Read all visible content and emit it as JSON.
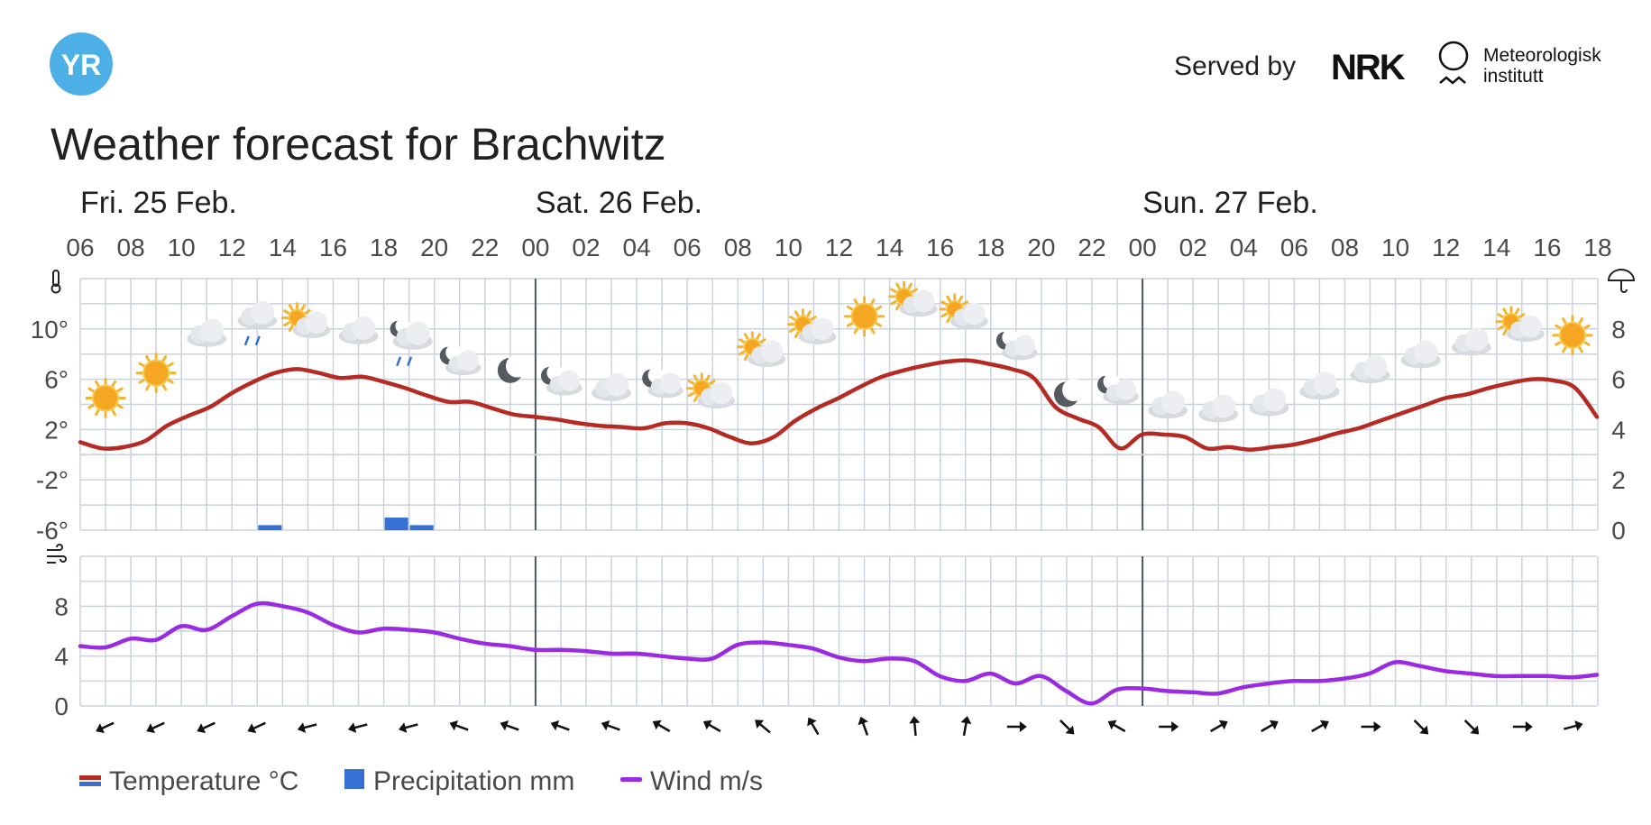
{
  "header": {
    "logo_text": "YR",
    "served_by": "Served by",
    "brand_nrk": "NRK",
    "brand_met_line1": "Meteorologisk",
    "brand_met_line2": "institutt",
    "title": "Weather forecast for Brachwitz"
  },
  "colors": {
    "temperature": "#b52a22",
    "temperature_below": "#3b6fc9",
    "precipitation": "#3670d4",
    "wind": "#9a2be2",
    "grid": "#cbd2da",
    "zero_line": "#cfd5dc",
    "day_divider": "#4f565e",
    "logo": "#4cb0e6"
  },
  "chart_data": {
    "type": "line",
    "day_labels": [
      {
        "label": "Fri. 25 Feb.",
        "hour_index": 0
      },
      {
        "label": "Sat. 26 Feb.",
        "hour_index": 18
      },
      {
        "label": "Sun. 27 Feb.",
        "hour_index": 42
      }
    ],
    "hour_ticks": [
      "06",
      "08",
      "10",
      "12",
      "14",
      "16",
      "18",
      "20",
      "22",
      "00",
      "02",
      "04",
      "06",
      "08",
      "10",
      "12",
      "14",
      "16",
      "18",
      "20",
      "22",
      "00",
      "02",
      "04",
      "06",
      "08",
      "10",
      "12",
      "14",
      "16",
      "18"
    ],
    "temperature": {
      "name": "Temperature °C",
      "unit": "°C",
      "y_ticks": [
        "10°",
        "6°",
        "2°",
        "-2°",
        "-6°"
      ],
      "y_tick_values": [
        10,
        6,
        2,
        -2,
        -6
      ],
      "ylim": [
        -6,
        14
      ],
      "values": [
        1.0,
        0.5,
        0.6,
        1.1,
        2.3,
        3.1,
        3.8,
        4.9,
        5.8,
        6.5,
        6.8,
        6.5,
        6.1,
        6.2,
        5.8,
        5.3,
        4.7,
        4.2,
        4.2,
        3.7,
        3.2,
        3.0,
        2.8,
        2.5,
        2.3,
        2.2,
        2.1,
        2.5,
        2.5,
        2.1,
        1.4,
        0.9,
        1.4,
        2.7,
        3.7,
        4.5,
        5.4,
        6.2,
        6.7,
        7.1,
        7.4,
        7.5,
        7.2,
        6.8,
        6.1,
        3.8,
        2.9,
        2.2,
        0.5,
        1.6,
        1.6,
        1.4,
        0.5,
        0.6,
        0.4,
        0.6,
        0.8,
        1.2,
        1.7,
        2.1,
        2.7,
        3.3,
        3.9,
        4.5,
        4.8,
        5.3,
        5.7,
        6.0,
        5.9,
        5.3,
        3.0
      ]
    },
    "precipitation": {
      "name": "Precipitation mm",
      "unit": "mm",
      "y_ticks": [
        "8",
        "6",
        "4",
        "2",
        "0"
      ],
      "y_tick_values": [
        8,
        6,
        4,
        2,
        0
      ],
      "ylim": [
        0,
        10
      ],
      "bars": [
        {
          "hour_index": 7,
          "value": 0.2
        },
        {
          "hour_index": 12,
          "value": 0.5
        },
        {
          "hour_index": 13,
          "value": 0.2
        }
      ]
    },
    "wind": {
      "name": "Wind m/s",
      "unit": "m/s",
      "y_ticks": [
        "8",
        "4",
        "0"
      ],
      "y_tick_values": [
        8,
        4,
        0
      ],
      "ylim": [
        0,
        12
      ],
      "values": [
        4.8,
        4.7,
        5.4,
        5.3,
        6.4,
        6.1,
        7.2,
        8.2,
        8.0,
        7.5,
        6.5,
        5.9,
        6.2,
        6.1,
        5.9,
        5.4,
        5.0,
        4.8,
        4.5,
        4.5,
        4.4,
        4.2,
        4.2,
        4.0,
        3.8,
        3.8,
        4.9,
        5.1,
        4.9,
        4.6,
        3.9,
        3.6,
        3.8,
        3.6,
        2.4,
        2.0,
        2.6,
        1.8,
        2.4,
        1.2,
        0.2,
        1.3,
        1.4,
        1.2,
        1.1,
        1.0,
        1.5,
        1.8,
        2.0,
        2.0,
        2.2,
        2.6,
        3.5,
        3.2,
        2.8,
        2.6,
        2.4,
        2.4,
        2.4,
        2.3,
        2.5
      ]
    },
    "wind_direction_deg": [
      245,
      245,
      245,
      245,
      255,
      255,
      255,
      290,
      290,
      290,
      290,
      300,
      300,
      310,
      330,
      340,
      355,
      10,
      90,
      135,
      300,
      90,
      60,
      60,
      60,
      90,
      135,
      135,
      90,
      75
    ],
    "weather_symbols": [
      {
        "hour_index": 1,
        "icon": "sun-icon",
        "temp": 4.5
      },
      {
        "hour_index": 3,
        "icon": "sun-icon",
        "temp": 6.5
      },
      {
        "hour_index": 5,
        "icon": "cloud-icon",
        "temp": 9.5
      },
      {
        "hour_index": 7,
        "icon": "rain-cloud-icon",
        "temp": 10.5
      },
      {
        "hour_index": 9,
        "icon": "partly-cloudy-day-icon",
        "temp": 10.3
      },
      {
        "hour_index": 11,
        "icon": "cloud-icon",
        "temp": 9.7
      },
      {
        "hour_index": 13,
        "icon": "rain-night-icon",
        "temp": 9.0
      },
      {
        "hour_index": 15,
        "icon": "partly-cloudy-night-icon",
        "temp": 7.3
      },
      {
        "hour_index": 17,
        "icon": "moon-icon",
        "temp": 6.7
      },
      {
        "hour_index": 19,
        "icon": "partly-cloudy-night-icon",
        "temp": 5.7
      },
      {
        "hour_index": 21,
        "icon": "cloud-icon",
        "temp": 5.2
      },
      {
        "hour_index": 23,
        "icon": "partly-cloudy-night-icon",
        "temp": 5.5
      },
      {
        "hour_index": 25,
        "icon": "partly-cloudy-day-icon",
        "temp": 4.7
      },
      {
        "hour_index": 27,
        "icon": "partly-cloudy-day-icon",
        "temp": 8.0
      },
      {
        "hour_index": 29,
        "icon": "partly-cloudy-day-icon",
        "temp": 9.8
      },
      {
        "hour_index": 31,
        "icon": "sun-icon",
        "temp": 11.0
      },
      {
        "hour_index": 33,
        "icon": "partly-cloudy-day-icon",
        "temp": 12.0
      },
      {
        "hour_index": 35,
        "icon": "partly-cloudy-day-icon",
        "temp": 11.0
      },
      {
        "hour_index": 37,
        "icon": "partly-cloudy-night-icon",
        "temp": 8.5
      },
      {
        "hour_index": 39,
        "icon": "moon-icon",
        "temp": 4.8
      },
      {
        "hour_index": 41,
        "icon": "partly-cloudy-night-icon",
        "temp": 5.0
      },
      {
        "hour_index": 43,
        "icon": "cloud-icon",
        "temp": 3.8
      },
      {
        "hour_index": 45,
        "icon": "cloud-icon",
        "temp": 3.5
      },
      {
        "hour_index": 47,
        "icon": "cloud-icon",
        "temp": 4.0
      },
      {
        "hour_index": 49,
        "icon": "cloud-icon",
        "temp": 5.3
      },
      {
        "hour_index": 51,
        "icon": "cloud-icon",
        "temp": 6.6
      },
      {
        "hour_index": 53,
        "icon": "cloud-icon",
        "temp": 7.8
      },
      {
        "hour_index": 55,
        "icon": "cloud-icon",
        "temp": 8.8
      },
      {
        "hour_index": 57,
        "icon": "partly-cloudy-day-icon",
        "temp": 10.0
      },
      {
        "hour_index": 59,
        "icon": "sun-icon",
        "temp": 9.5
      }
    ]
  },
  "legend": {
    "temperature": "Temperature °C",
    "precipitation": "Precipitation mm",
    "wind": "Wind m/s"
  }
}
